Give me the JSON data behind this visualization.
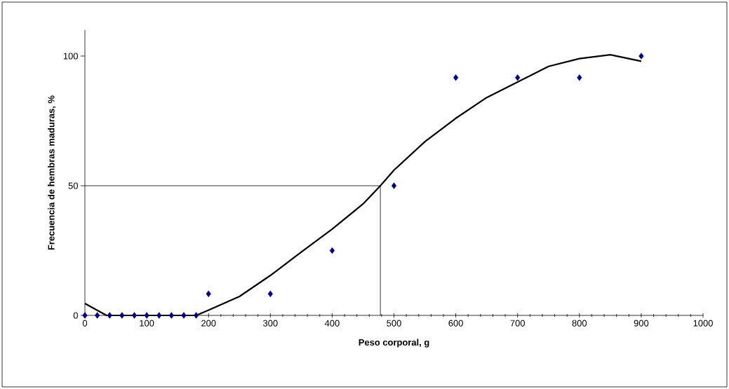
{
  "chart_data": {
    "type": "scatter",
    "xlabel": "Peso corporal, g",
    "ylabel": "Frecuencia de hembras maduras, %",
    "series": [
      {
        "color": "#000080",
        "marker": "diamond",
        "x": [
          0,
          20,
          40,
          60,
          80,
          100,
          120,
          140,
          160,
          180,
          200,
          300,
          400,
          500,
          600,
          700,
          800,
          900
        ],
        "values": [
          0,
          0,
          0,
          0,
          0,
          0,
          0,
          0,
          0,
          0,
          8.3,
          8.3,
          25,
          50,
          91.7,
          91.7,
          91.7,
          100
        ]
      },
      {
        "type": "line",
        "color": "#000000",
        "marker": "none",
        "line_style": "solid",
        "x": [
          0,
          35,
          180,
          200,
          250,
          300,
          350,
          400,
          450,
          478,
          500,
          550,
          600,
          650,
          700,
          750,
          800,
          850,
          900
        ],
        "values": [
          4.6,
          0,
          0,
          2,
          7.3,
          15.4,
          24.4,
          33.3,
          43,
          50,
          56,
          67,
          76,
          84,
          90,
          96,
          99,
          100.5,
          98
        ]
      }
    ],
    "xlim": [
      0,
      1000
    ],
    "xticks": [
      0,
      100,
      200,
      300,
      400,
      500,
      600,
      700,
      800,
      900,
      1000
    ],
    "ylim": [
      0,
      110
    ],
    "yticks": [
      0,
      50,
      100
    ],
    "ref_lines": [
      {
        "axis": "x",
        "value": 478,
        "color": "#000000"
      },
      {
        "axis": "y",
        "value": 50,
        "color": "#000000"
      }
    ],
    "grid": false,
    "legend": false
  }
}
